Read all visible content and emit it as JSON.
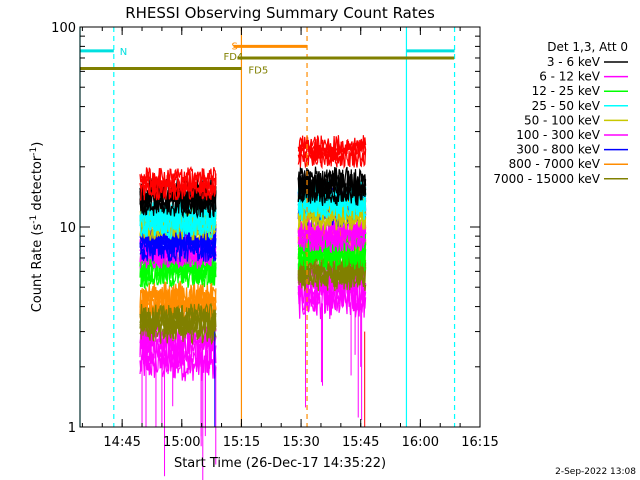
{
  "chart_data": {
    "type": "line",
    "title": "RHESSI Observing Summary Count Rates",
    "xlabel": "Start Time (26-Dec-17 14:35:22)",
    "ylabel_main": "Count Rate (s",
    "ylabel_sup1": "-1",
    "ylabel_mid": " detector",
    "ylabel_sup2": "-1",
    "ylabel_end": ")",
    "x_range_min": [
      14.5867,
      16.25
    ],
    "y_range": [
      1,
      100
    ],
    "y_scale": "log",
    "x_ticks": [
      {
        "label": "14:45",
        "min": 885
      },
      {
        "label": "15:00",
        "min": 900
      },
      {
        "label": "15:15",
        "min": 915
      },
      {
        "label": "15:30",
        "min": 930
      },
      {
        "label": "15:45",
        "min": 945
      },
      {
        "label": "16:00",
        "min": 960
      },
      {
        "label": "16:15",
        "min": 975
      }
    ],
    "y_ticks": [
      {
        "label": "1",
        "value": 1
      },
      {
        "label": "10",
        "value": 10
      },
      {
        "label": "100",
        "value": 100
      }
    ],
    "legend_title": "Det 1,3, Att 0",
    "series": [
      {
        "name": "3 - 6 keV",
        "color": "#000000",
        "seg1": 14.0,
        "seg2": 16.0,
        "amp": 0.12
      },
      {
        "name": "6 - 12 keV",
        "color": "#ff00ff",
        "seg1": 2.4,
        "seg2": 4.9,
        "amp": 0.16
      },
      {
        "name": "12 - 25 keV",
        "color": "#00ff00",
        "seg1": 6.2,
        "seg2": 7.6,
        "amp": 0.12
      },
      {
        "name": "25 - 50 keV",
        "color": "#00ffff",
        "seg1": 11.0,
        "seg2": 13.5,
        "amp": 0.12
      },
      {
        "name": "50 - 100 keV",
        "color": "#c8c800",
        "seg1": 10.5,
        "seg2": 11.8,
        "amp": 0.1
      },
      {
        "name": "100 - 300 keV",
        "color": "#ff00ff",
        "seg1": 7.6,
        "seg2": 9.2,
        "amp": 0.1
      },
      {
        "name": "300 - 800 keV",
        "color": "#0000ff",
        "seg1": 8.4,
        "seg2": 12.6,
        "amp": 0.12
      },
      {
        "name": "800 - 7000 keV",
        "color": "#ff8c00",
        "seg1": 4.2,
        "seg2": 8.4,
        "amp": 0.14
      },
      {
        "name": "7000 - 15000 keV",
        "color": "#808000",
        "seg1": 3.3,
        "seg2": 6.0,
        "amp": 0.12
      }
    ],
    "red_band": {
      "name": "3 - 6 keV top",
      "color": "#ff0000",
      "seg1": 16.5,
      "seg2": 24.0
    },
    "data_segments_min": [
      [
        889.5,
        908.6
      ],
      [
        929.3,
        946.3
      ]
    ],
    "flag_bars": [
      {
        "label": "N",
        "color": "#00e0e0",
        "ranges": [
          [
            874.4,
            882.9
          ],
          [
            956.5,
            968.6
          ]
        ],
        "value": 76
      },
      {
        "label": "S",
        "color": "#ff8c00",
        "ranges": [
          [
            913.0,
            931.5
          ]
        ],
        "value": 80
      },
      {
        "label": "FD4",
        "color": "#808000",
        "ranges": [
          [
            914.0,
            968.5
          ]
        ],
        "value": 70
      },
      {
        "label": "FD5",
        "color": "#808000",
        "ranges": [
          [
            874.4,
            915.0
          ]
        ],
        "value": 62
      }
    ],
    "vlines": [
      {
        "name": "orbit-boundary",
        "min": 874.4,
        "color": "#00ffff",
        "dash": false
      },
      {
        "name": "orbit-boundary",
        "min": 882.9,
        "color": "#00ffff",
        "dash": true
      },
      {
        "name": "saa-boundary",
        "min": 915.0,
        "color": "#ff8c00",
        "dash": false
      },
      {
        "name": "saa-boundary",
        "min": 931.5,
        "color": "#ff8c00",
        "dash": true
      },
      {
        "name": "orbit-boundary",
        "min": 956.5,
        "color": "#00ffff",
        "dash": false
      },
      {
        "name": "orbit-boundary",
        "min": 968.6,
        "color": "#00ffff",
        "dash": true
      }
    ],
    "stamp": "2-Sep-2022 13:08"
  }
}
